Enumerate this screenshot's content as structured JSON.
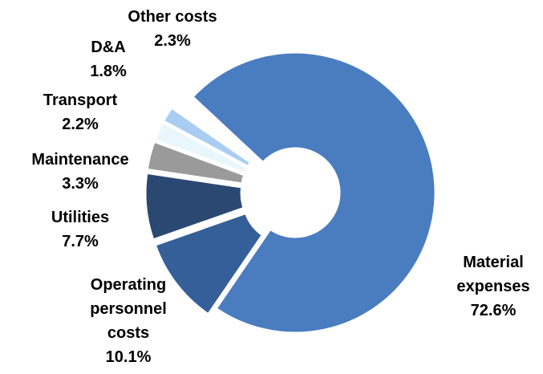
{
  "chart_data": {
    "type": "donut",
    "categories": [
      "Material expenses",
      "Operating personnel costs",
      "Utilities",
      "Maintenance",
      "Transport",
      "D&A",
      "Other costs"
    ],
    "values": [
      72.6,
      10.1,
      7.7,
      3.3,
      2.2,
      1.8,
      2.3
    ],
    "value_labels": [
      "72.6%",
      "10.1%",
      "7.7%",
      "3.3%",
      "2.2%",
      "1.8%",
      "2.3%"
    ],
    "colors": [
      "#4a7cc0",
      "#355f99",
      "#2b4872",
      "#9a9a9a",
      "#e9f7fc",
      "#a9cdf2",
      "#ffffff"
    ]
  }
}
